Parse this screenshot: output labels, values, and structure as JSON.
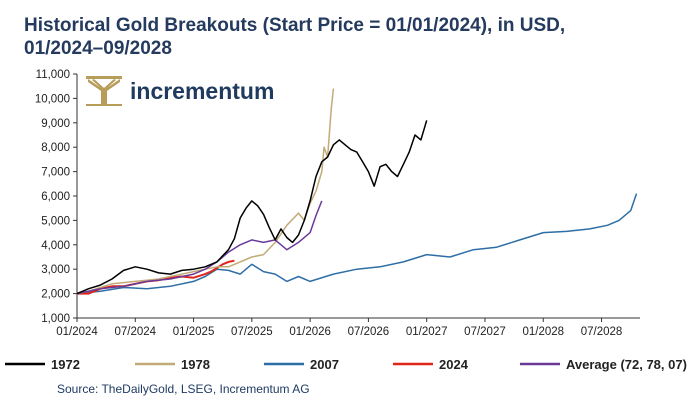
{
  "title_line1": "Historical Gold Breakouts (Start Price = 01/01/2024), in USD,",
  "title_line2": "01/2024–09/2028",
  "source": "Source: TheDailyGold, LSEG, Incrementum AG",
  "logo": {
    "text": "incrementum",
    "icon": "tree-logo-icon",
    "color": "#b79c5a"
  },
  "chart_data": {
    "type": "line",
    "ylim": [
      1000,
      11000
    ],
    "yticks": [
      1000,
      2000,
      3000,
      4000,
      5000,
      6000,
      7000,
      8000,
      9000,
      10000,
      11000
    ],
    "ytick_labels": [
      "1,000",
      "2,000",
      "3,000",
      "4,000",
      "5,000",
      "6,000",
      "7,000",
      "8,000",
      "9,000",
      "10,000",
      "11,000"
    ],
    "xlim": [
      2024.0,
      2028.83
    ],
    "xticks": [
      2024.0,
      2024.5,
      2025.0,
      2025.5,
      2026.0,
      2026.5,
      2027.0,
      2027.5,
      2028.0,
      2028.5
    ],
    "xtick_labels": [
      "01/2024",
      "07/2024",
      "01/2025",
      "07/2025",
      "01/2026",
      "07/2026",
      "01/2027",
      "07/2027",
      "01/2028",
      "07/2028"
    ],
    "grid": false,
    "legend_position": "bottom",
    "series": [
      {
        "name": "1972",
        "color": "#000000",
        "x": [
          2024.0,
          2024.1,
          2024.2,
          2024.3,
          2024.4,
          2024.5,
          2024.6,
          2024.7,
          2024.8,
          2024.9,
          2025.0,
          2025.1,
          2025.2,
          2025.3,
          2025.35,
          2025.4,
          2025.45,
          2025.5,
          2025.55,
          2025.6,
          2025.65,
          2025.7,
          2025.75,
          2025.8,
          2025.85,
          2025.9,
          2025.95,
          2026.0,
          2026.05,
          2026.1,
          2026.15,
          2026.2,
          2026.25,
          2026.3,
          2026.35,
          2026.4,
          2026.45,
          2026.5,
          2026.55,
          2026.6,
          2026.65,
          2026.7,
          2026.75,
          2026.8,
          2026.85,
          2026.9,
          2026.95,
          2027.0
        ],
        "values": [
          2000,
          2200,
          2350,
          2600,
          2950,
          3100,
          3000,
          2850,
          2800,
          2950,
          3000,
          3100,
          3300,
          3800,
          4250,
          5100,
          5500,
          5800,
          5600,
          5250,
          4700,
          4200,
          4650,
          4300,
          4100,
          4400,
          5000,
          5800,
          6800,
          7400,
          7600,
          8100,
          8300,
          8100,
          7900,
          7800,
          7400,
          7000,
          6400,
          7200,
          7300,
          7000,
          6800,
          7300,
          7800,
          8500,
          8300,
          9100
        ]
      },
      {
        "name": "1978",
        "color": "#c2ab78",
        "x": [
          2024.0,
          2024.1,
          2024.2,
          2024.3,
          2024.4,
          2024.5,
          2024.6,
          2024.7,
          2024.8,
          2024.9,
          2025.0,
          2025.1,
          2025.2,
          2025.3,
          2025.4,
          2025.5,
          2025.6,
          2025.7,
          2025.8,
          2025.9,
          2025.95,
          2026.0,
          2026.05,
          2026.1,
          2026.12,
          2026.15,
          2026.18,
          2026.2
        ],
        "values": [
          2000,
          2100,
          2250,
          2400,
          2450,
          2500,
          2550,
          2600,
          2700,
          2800,
          2900,
          3000,
          3100,
          3100,
          3300,
          3500,
          3600,
          4100,
          4800,
          5300,
          5000,
          5700,
          6200,
          7000,
          8000,
          7600,
          9500,
          10400
        ]
      },
      {
        "name": "2007",
        "color": "#2e6ea6",
        "x": [
          2024.0,
          2024.2,
          2024.4,
          2024.6,
          2024.8,
          2025.0,
          2025.1,
          2025.2,
          2025.3,
          2025.4,
          2025.5,
          2025.6,
          2025.7,
          2025.8,
          2025.9,
          2026.0,
          2026.2,
          2026.4,
          2026.6,
          2026.8,
          2027.0,
          2027.2,
          2027.4,
          2027.6,
          2027.8,
          2028.0,
          2028.2,
          2028.4,
          2028.55,
          2028.65,
          2028.75,
          2028.8
        ],
        "values": [
          2000,
          2100,
          2250,
          2200,
          2300,
          2500,
          2700,
          3000,
          2950,
          2800,
          3200,
          2900,
          2800,
          2500,
          2700,
          2500,
          2800,
          3000,
          3100,
          3300,
          3600,
          3500,
          3800,
          3900,
          4200,
          4500,
          4550,
          4650,
          4800,
          5000,
          5400,
          6100
        ]
      },
      {
        "name": "2024",
        "color": "#e0251b",
        "x": [
          2024.0,
          2024.1,
          2024.2,
          2024.3,
          2024.4,
          2024.5,
          2024.6,
          2024.7,
          2024.8,
          2024.9,
          2025.0,
          2025.1,
          2025.15,
          2025.2,
          2025.25,
          2025.3,
          2025.35
        ],
        "values": [
          2000,
          2000,
          2200,
          2300,
          2300,
          2400,
          2500,
          2550,
          2650,
          2700,
          2650,
          2800,
          2900,
          3050,
          3200,
          3300,
          3350
        ]
      },
      {
        "name": "Average (72, 78, 07)",
        "color": "#6a3a98",
        "x": [
          2024.0,
          2024.2,
          2024.4,
          2024.6,
          2024.8,
          2025.0,
          2025.1,
          2025.2,
          2025.3,
          2025.4,
          2025.5,
          2025.6,
          2025.7,
          2025.8,
          2025.9,
          2026.0,
          2026.05,
          2026.1
        ],
        "values": [
          2000,
          2200,
          2300,
          2500,
          2600,
          2800,
          3000,
          3300,
          3700,
          4000,
          4200,
          4100,
          4200,
          3800,
          4100,
          4500,
          5200,
          5800
        ]
      }
    ]
  }
}
